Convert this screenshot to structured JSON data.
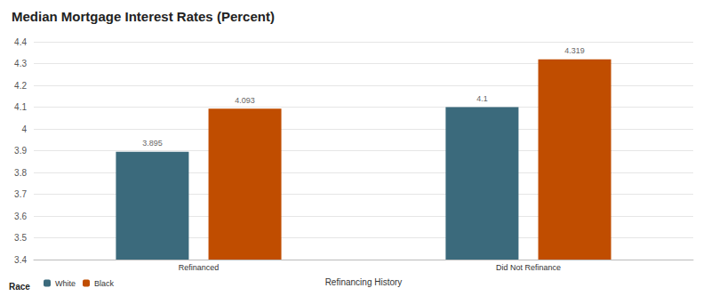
{
  "chart_data": {
    "type": "bar",
    "title": "Median Mortgage Interest Rates (Percent)",
    "x_label": "Refinancing History",
    "legend_title": "Race",
    "categories": [
      "Refinanced",
      "Did Not Refinance"
    ],
    "series": [
      {
        "name": "White",
        "color": "#3b6a7c",
        "values": [
          3.895,
          4.1
        ]
      },
      {
        "name": "Black",
        "color": "#c04d00",
        "values": [
          4.093,
          4.319
        ]
      }
    ],
    "ylim": [
      3.4,
      4.4
    ],
    "yticks": [
      3.4,
      3.5,
      3.6,
      3.7,
      3.8,
      3.9,
      4,
      4.1,
      4.2,
      4.3,
      4.4
    ],
    "grid": true,
    "legend": "bottom-left",
    "data_labels": true
  }
}
